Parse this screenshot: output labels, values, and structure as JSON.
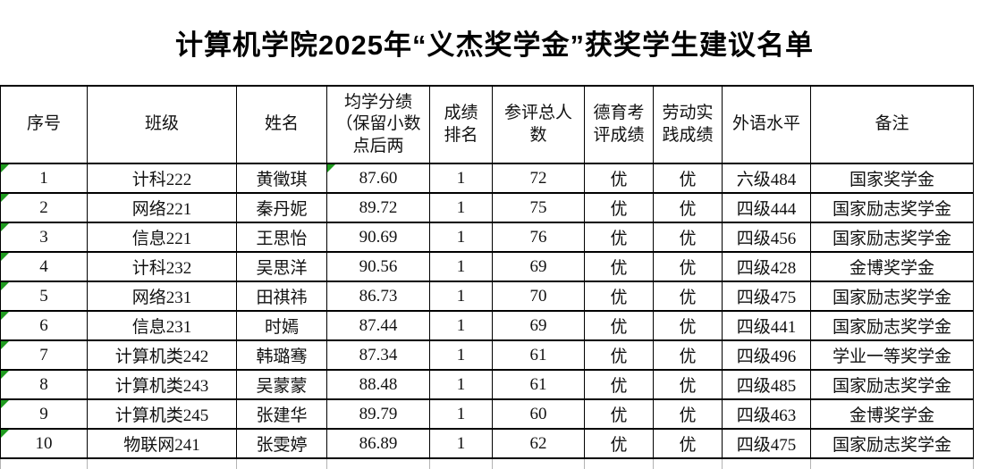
{
  "title": "计算机学院2025年“义杰奖学金”获奖学生建议名单",
  "table": {
    "headers": [
      "序号",
      "班级",
      "姓名",
      "均学分绩\n（保留小数\n点后两",
      "成绩\n排名",
      "参评总人\n数",
      "德育考\n评成绩",
      "劳动实\n践成绩",
      "外语水平",
      "备注"
    ],
    "rows": [
      {
        "no": "1",
        "class_name": "计科222",
        "name": "黄徵琪",
        "gpa": "87.60",
        "rank": "1",
        "total": "72",
        "moral": "优",
        "labor": "优",
        "foreign_level": "六级484",
        "remark": "国家奖学金"
      },
      {
        "no": "2",
        "class_name": "网络221",
        "name": "秦丹妮",
        "gpa": "89.72",
        "rank": "1",
        "total": "75",
        "moral": "优",
        "labor": "优",
        "foreign_level": "四级444",
        "remark": "国家励志奖学金"
      },
      {
        "no": "3",
        "class_name": "信息221",
        "name": "王思怡",
        "gpa": "90.69",
        "rank": "1",
        "total": "76",
        "moral": "优",
        "labor": "优",
        "foreign_level": "四级456",
        "remark": "国家励志奖学金"
      },
      {
        "no": "4",
        "class_name": "计科232",
        "name": "吴思洋",
        "gpa": "90.56",
        "rank": "1",
        "total": "69",
        "moral": "优",
        "labor": "优",
        "foreign_level": "四级428",
        "remark": "金博奖学金"
      },
      {
        "no": "5",
        "class_name": "网络231",
        "name": "田祺祎",
        "gpa": "86.73",
        "rank": "1",
        "total": "70",
        "moral": "优",
        "labor": "优",
        "foreign_level": "四级475",
        "remark": "国家励志奖学金"
      },
      {
        "no": "6",
        "class_name": "信息231",
        "name": "时嫣",
        "gpa": "87.44",
        "rank": "1",
        "total": "69",
        "moral": "优",
        "labor": "优",
        "foreign_level": "四级441",
        "remark": "国家励志奖学金"
      },
      {
        "no": "7",
        "class_name": "计算机类242",
        "name": "韩璐骞",
        "gpa": "87.34",
        "rank": "1",
        "total": "61",
        "moral": "优",
        "labor": "优",
        "foreign_level": "四级496",
        "remark": "学业一等奖学金"
      },
      {
        "no": "8",
        "class_name": "计算机类243",
        "name": "吴蒙蒙",
        "gpa": "88.48",
        "rank": "1",
        "total": "61",
        "moral": "优",
        "labor": "优",
        "foreign_level": "四级485",
        "remark": "国家励志奖学金"
      },
      {
        "no": "9",
        "class_name": "计算机类245",
        "name": "张建华",
        "gpa": "89.79",
        "rank": "1",
        "total": "60",
        "moral": "优",
        "labor": "优",
        "foreign_level": "四级463",
        "remark": "金博奖学金"
      },
      {
        "no": "10",
        "class_name": "物联网241",
        "name": "张雯婷",
        "gpa": "86.89",
        "rank": "1",
        "total": "62",
        "moral": "优",
        "labor": "优",
        "foreign_level": "四级475",
        "remark": "国家励志奖学金"
      }
    ],
    "error_indicators": {
      "serial_column_rows": [
        1,
        2,
        3,
        4,
        5,
        6,
        7,
        8,
        9,
        10
      ],
      "extra_cells": [
        {
          "row": 1,
          "col": "gpa"
        }
      ]
    }
  },
  "colors": {
    "indicator_green": "#1f9b1f",
    "grid_border": "#000000",
    "light_grid": "#b3b3b3"
  }
}
